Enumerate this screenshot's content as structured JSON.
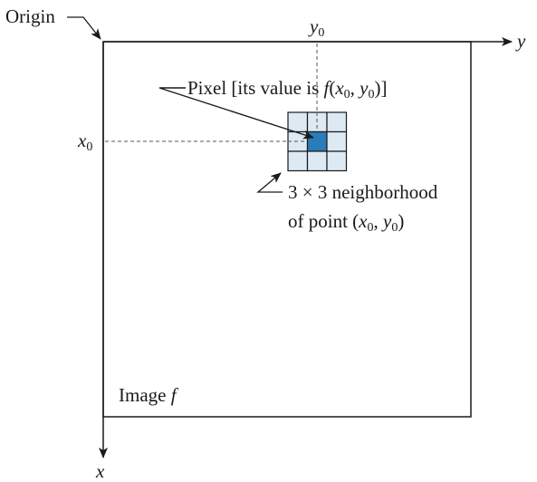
{
  "figure": {
    "origin_label": "Origin",
    "y_axis_label": "y",
    "x_axis_label": "x",
    "y0_label": "y",
    "y0_sub": "0",
    "x0_label": "x",
    "x0_sub": "0",
    "pixel_caption": {
      "prefix": "Pixel [its value is ",
      "func": "f",
      "open": "(",
      "xvar": "x",
      "xsub": "0",
      "comma": ", ",
      "yvar": "y",
      "ysub": "0",
      "close": ")]"
    },
    "neighborhood_caption": {
      "line1": "3 × 3 neighborhood",
      "line2_prefix": "of point (",
      "xvar": "x",
      "xsub": "0",
      "comma": ", ",
      "yvar": "y",
      "ysub": "0",
      "close": ")"
    },
    "image_label_text": "Image ",
    "image_label_func": "f"
  },
  "colors": {
    "line": "#1a1a1a",
    "grid_cell_fill": "#dde9f3",
    "center_pixel_fill": "#2a7db8",
    "guide_dashes": "#555555"
  }
}
